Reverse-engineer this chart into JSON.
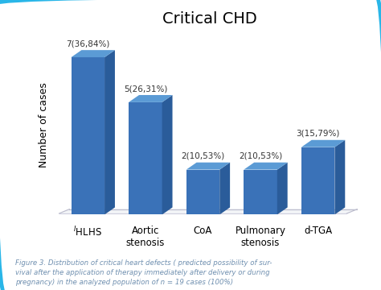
{
  "title": "Critical CHD",
  "title_fontsize": 14,
  "categories": [
    "$^{I}$HLHS",
    "Aortic\nstenosis",
    "CoA",
    "Pulmonary\nstenosis",
    "d-TGA"
  ],
  "values": [
    7,
    5,
    2,
    2,
    3
  ],
  "labels": [
    "7(36,84%)",
    "5(26,31%)",
    "2(10,53%)",
    "2(10,53%)",
    "3(15,79%)"
  ],
  "bar_color_front": "#3A72B8",
  "bar_color_top": "#5B9BD5",
  "bar_color_side": "#2A5C9A",
  "floor_color": "#E8ECF0",
  "floor_edge_color": "#C8CCD4",
  "ylabel": "Number of cases",
  "ylabel_fontsize": 9,
  "label_fontsize": 7.5,
  "xtick_fontsize": 8.5,
  "ylim": [
    0,
    8
  ],
  "border_color": "#29B6E8",
  "bg_color": "#FFFFFF",
  "caption": "Figure 3. Distribution of critical heart defects ( predicted possibility of sur-\nvival after the application of therapy immediately after delivery or during\npregnancy) in the analyzed population of n = 19 cases (100%)",
  "caption_color": "#7090B0",
  "caption_fontsize": 6.2
}
